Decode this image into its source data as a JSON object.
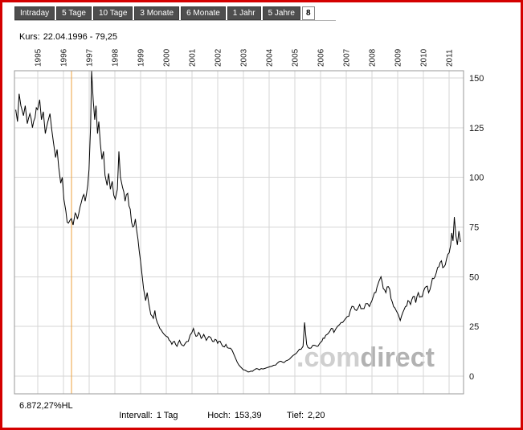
{
  "window": {
    "border_color": "#d40000"
  },
  "toolbar": {
    "tabs": [
      {
        "label": "Intraday",
        "selected": false
      },
      {
        "label": "5 Tage",
        "selected": false
      },
      {
        "label": "10 Tage",
        "selected": false
      },
      {
        "label": "3 Monate",
        "selected": false
      },
      {
        "label": "6 Monate",
        "selected": false
      },
      {
        "label": "1 Jahr",
        "selected": false
      },
      {
        "label": "5 Jahre",
        "selected": false
      },
      {
        "label": "8",
        "selected": true
      }
    ]
  },
  "quote": {
    "label": "Kurs:",
    "value": "22.04.1996 - 79,25"
  },
  "watermark": {
    "prefix": ".com",
    "suffix": "direct"
  },
  "footer": {
    "change": "6.872,27%HL",
    "interval_label": "Intervall:",
    "interval_value": "1 Tag",
    "high_label": "Hoch:",
    "high_value": "153,39",
    "low_label": "Tief:",
    "low_value": "2,20"
  },
  "colors": {
    "crosshair": "#eca23e",
    "line": "#000000",
    "grid": "#d6d6d6",
    "plot_border": "#9a9a9a",
    "tab_bg": "#4e4e4e",
    "tab_text": "#ffffff",
    "axis_text": "#1a1a1a"
  },
  "chart_data": {
    "type": "line",
    "series_name": "Kurs",
    "title": "",
    "xlabel": "",
    "ylabel": "",
    "x_years": [
      1995,
      1996,
      1997,
      1998,
      1999,
      2000,
      2001,
      2002,
      2003,
      2004,
      2005,
      2006,
      2007,
      2008,
      2009,
      2010,
      2011
    ],
    "y_ticks": [
      0,
      25,
      50,
      75,
      100,
      125,
      150
    ],
    "x_range": [
      1994.1,
      2011.56
    ],
    "y_range": [
      -8.9,
      153.6
    ],
    "grid": true,
    "legend": false,
    "interval": "1 Tag",
    "high": 153.39,
    "low": 2.2,
    "crosshair_year": 1996.31,
    "crosshair_date": "22.04.1996",
    "crosshair_value": 79.25,
    "points": [
      [
        1994.15,
        134
      ],
      [
        1994.22,
        128
      ],
      [
        1994.28,
        142
      ],
      [
        1994.35,
        136
      ],
      [
        1994.45,
        131
      ],
      [
        1994.52,
        136
      ],
      [
        1994.6,
        127
      ],
      [
        1994.7,
        132
      ],
      [
        1994.8,
        125
      ],
      [
        1994.9,
        130
      ],
      [
        1995.0,
        134
      ],
      [
        1995.08,
        139
      ],
      [
        1995.15,
        129
      ],
      [
        1995.22,
        133
      ],
      [
        1995.3,
        122
      ],
      [
        1995.4,
        128
      ],
      [
        1995.48,
        132
      ],
      [
        1995.55,
        124
      ],
      [
        1995.62,
        117
      ],
      [
        1995.7,
        110
      ],
      [
        1995.76,
        114
      ],
      [
        1995.82,
        105
      ],
      [
        1995.9,
        97
      ],
      [
        1995.96,
        100
      ],
      [
        1996.02,
        89
      ],
      [
        1996.1,
        83
      ],
      [
        1996.2,
        77
      ],
      [
        1996.31,
        79.25
      ],
      [
        1996.38,
        76
      ],
      [
        1996.46,
        82
      ],
      [
        1996.55,
        79
      ],
      [
        1996.65,
        85
      ],
      [
        1996.75,
        90
      ],
      [
        1996.85,
        88
      ],
      [
        1996.95,
        96
      ],
      [
        1997.0,
        104
      ],
      [
        1997.06,
        126
      ],
      [
        1997.1,
        153.39
      ],
      [
        1997.16,
        139
      ],
      [
        1997.22,
        129
      ],
      [
        1997.27,
        136
      ],
      [
        1997.33,
        122
      ],
      [
        1997.38,
        128
      ],
      [
        1997.44,
        117
      ],
      [
        1997.5,
        109
      ],
      [
        1997.56,
        113
      ],
      [
        1997.62,
        101
      ],
      [
        1997.7,
        96
      ],
      [
        1997.76,
        102
      ],
      [
        1997.83,
        94
      ],
      [
        1997.9,
        98
      ],
      [
        1997.96,
        91
      ],
      [
        1998.02,
        89
      ],
      [
        1998.1,
        94
      ],
      [
        1998.16,
        113
      ],
      [
        1998.22,
        100
      ],
      [
        1998.3,
        95
      ],
      [
        1998.4,
        88
      ],
      [
        1998.5,
        92
      ],
      [
        1998.6,
        84
      ],
      [
        1998.7,
        75
      ],
      [
        1998.8,
        79
      ],
      [
        1998.9,
        69
      ],
      [
        1999.0,
        58
      ],
      [
        1999.06,
        51
      ],
      [
        1999.12,
        44
      ],
      [
        1999.2,
        38
      ],
      [
        1999.26,
        42
      ],
      [
        1999.33,
        36
      ],
      [
        1999.4,
        31
      ],
      [
        1999.5,
        29
      ],
      [
        1999.56,
        33
      ],
      [
        1999.65,
        27
      ],
      [
        1999.75,
        24
      ],
      [
        1999.86,
        22
      ],
      [
        2000.0,
        20
      ],
      [
        2000.12,
        18
      ],
      [
        2000.22,
        16
      ],
      [
        2000.32,
        17.5
      ],
      [
        2000.42,
        15
      ],
      [
        2000.52,
        18
      ],
      [
        2000.62,
        15.5
      ],
      [
        2000.74,
        16.5
      ],
      [
        2000.86,
        17.5
      ],
      [
        2001.0,
        22
      ],
      [
        2001.06,
        24
      ],
      [
        2001.16,
        20
      ],
      [
        2001.26,
        22
      ],
      [
        2001.36,
        19
      ],
      [
        2001.46,
        21
      ],
      [
        2001.56,
        18
      ],
      [
        2001.66,
        20
      ],
      [
        2001.8,
        17.5
      ],
      [
        2001.9,
        18.5
      ],
      [
        2002.0,
        16.5
      ],
      [
        2002.1,
        17.5
      ],
      [
        2002.2,
        15
      ],
      [
        2002.32,
        16
      ],
      [
        2002.44,
        14
      ],
      [
        2002.56,
        13
      ],
      [
        2002.66,
        10
      ],
      [
        2002.76,
        7
      ],
      [
        2002.88,
        4.8
      ],
      [
        2003.0,
        3.2
      ],
      [
        2003.12,
        2.6
      ],
      [
        2003.25,
        2.2
      ],
      [
        2003.4,
        3
      ],
      [
        2003.5,
        3.8
      ],
      [
        2003.62,
        3.2
      ],
      [
        2003.76,
        3.6
      ],
      [
        2003.9,
        4.2
      ],
      [
        2004.04,
        4.8
      ],
      [
        2004.18,
        5.5
      ],
      [
        2004.32,
        6.5
      ],
      [
        2004.46,
        7.5
      ],
      [
        2004.58,
        6.8
      ],
      [
        2004.72,
        8
      ],
      [
        2004.86,
        9.5
      ],
      [
        2005.0,
        11
      ],
      [
        2005.12,
        12.5
      ],
      [
        2005.24,
        13.5
      ],
      [
        2005.32,
        15
      ],
      [
        2005.38,
        27
      ],
      [
        2005.46,
        16
      ],
      [
        2005.56,
        14
      ],
      [
        2005.7,
        15.5
      ],
      [
        2005.85,
        15
      ],
      [
        2006.0,
        17
      ],
      [
        2006.15,
        19
      ],
      [
        2006.3,
        21.5
      ],
      [
        2006.42,
        24
      ],
      [
        2006.52,
        22
      ],
      [
        2006.66,
        25
      ],
      [
        2006.8,
        27
      ],
      [
        2006.92,
        28
      ],
      [
        2007.04,
        30
      ],
      [
        2007.16,
        33
      ],
      [
        2007.28,
        35
      ],
      [
        2007.4,
        33
      ],
      [
        2007.52,
        36
      ],
      [
        2007.62,
        34
      ],
      [
        2007.76,
        36.5
      ],
      [
        2007.9,
        35
      ],
      [
        2008.0,
        38
      ],
      [
        2008.1,
        42
      ],
      [
        2008.2,
        45
      ],
      [
        2008.28,
        48
      ],
      [
        2008.35,
        50
      ],
      [
        2008.44,
        44
      ],
      [
        2008.54,
        42
      ],
      [
        2008.64,
        45
      ],
      [
        2008.74,
        39
      ],
      [
        2008.84,
        35
      ],
      [
        2008.94,
        33
      ],
      [
        2009.02,
        31
      ],
      [
        2009.1,
        28
      ],
      [
        2009.2,
        32
      ],
      [
        2009.3,
        35
      ],
      [
        2009.4,
        38
      ],
      [
        2009.5,
        36
      ],
      [
        2009.6,
        40
      ],
      [
        2009.7,
        37
      ],
      [
        2009.8,
        42
      ],
      [
        2009.9,
        40
      ],
      [
        2010.0,
        42.5
      ],
      [
        2010.1,
        45
      ],
      [
        2010.2,
        42
      ],
      [
        2010.3,
        46
      ],
      [
        2010.4,
        49
      ],
      [
        2010.5,
        52
      ],
      [
        2010.6,
        55
      ],
      [
        2010.7,
        58
      ],
      [
        2010.8,
        55
      ],
      [
        2010.9,
        59
      ],
      [
        2011.0,
        62
      ],
      [
        2011.06,
        66
      ],
      [
        2011.1,
        72
      ],
      [
        2011.15,
        68
      ],
      [
        2011.2,
        80
      ],
      [
        2011.26,
        71
      ],
      [
        2011.32,
        66
      ],
      [
        2011.38,
        73
      ],
      [
        2011.44,
        67.5
      ]
    ]
  }
}
